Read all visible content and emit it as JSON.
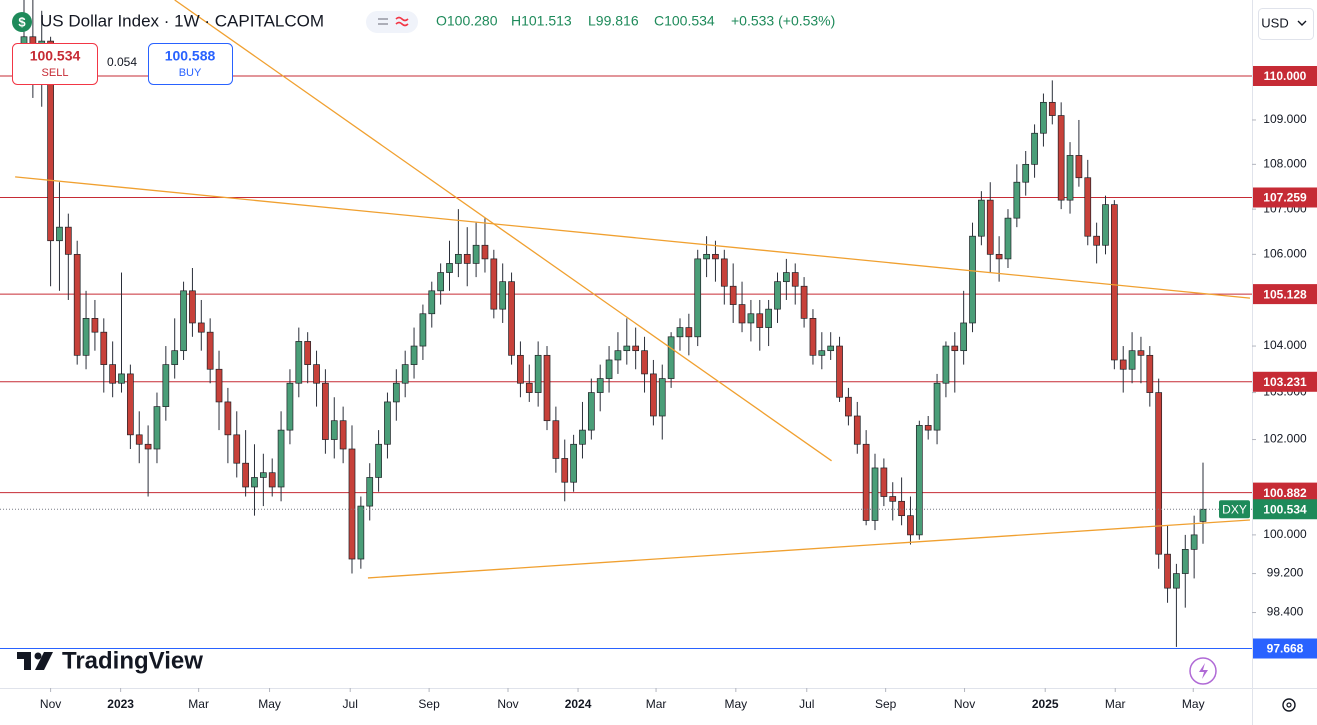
{
  "header": {
    "icon": "$",
    "symbol": "US Dollar Index · 1W · CAPITALCOM",
    "quote": [
      "O100.280",
      "H101.513",
      "L99.816",
      "C100.534",
      "+0.533 (+0.53%)"
    ],
    "quote_color": "#1e8a5a"
  },
  "trade": {
    "sell_price": "100.534",
    "sell": "SELL",
    "spread": "0.054",
    "buy_price": "100.588",
    "buy": "BUY"
  },
  "currency": "USD",
  "brand": "TradingView",
  "chart_data": {
    "type": "candlestick",
    "log_scale": true,
    "grid": false,
    "up_color": "#4a9e78",
    "down_color": "#c7413a",
    "wick_color": "#2a2e39",
    "ylim": [
      96.87,
      111.75
    ],
    "yticks": [
      {
        "value": 109,
        "label": "109.000"
      },
      {
        "value": 108,
        "label": "108.000"
      },
      {
        "value": 107,
        "label": "107.000"
      },
      {
        "value": 106,
        "label": "106.000"
      },
      {
        "value": 104,
        "label": "104.000"
      },
      {
        "value": 103,
        "label": "103.000"
      },
      {
        "value": 102,
        "label": "102.000"
      },
      {
        "value": 100,
        "label": "100.000"
      },
      {
        "value": 99.2,
        "label": "99.200"
      },
      {
        "value": 98.4,
        "label": "98.400"
      }
    ],
    "xticks": [
      {
        "value": 3,
        "label": "Nov"
      },
      {
        "value": 10.9,
        "label": "2023"
      },
      {
        "value": 19.7,
        "label": "Mar"
      },
      {
        "value": 27.7,
        "label": "May"
      },
      {
        "value": 36.8,
        "label": "Jul"
      },
      {
        "value": 45.7,
        "label": "Sep"
      },
      {
        "value": 54.6,
        "label": "Nov"
      },
      {
        "value": 62.5,
        "label": "2024"
      },
      {
        "value": 71.3,
        "label": "Mar"
      },
      {
        "value": 80.3,
        "label": "May"
      },
      {
        "value": 88.3,
        "label": "Jul"
      },
      {
        "value": 97.2,
        "label": "Sep"
      },
      {
        "value": 106.1,
        "label": "Nov"
      },
      {
        "value": 115.2,
        "label": "2025"
      },
      {
        "value": 123.1,
        "label": "Mar"
      },
      {
        "value": 131.9,
        "label": "May"
      }
    ],
    "open": [
      110.4,
      110.9,
      110.7,
      110.8,
      106.3,
      106.6,
      106.0,
      103.8,
      104.6,
      104.3,
      103.6,
      103.2,
      103.4,
      102.1,
      101.9,
      101.8,
      102.7,
      103.6,
      103.9,
      105.2,
      104.5,
      104.3,
      103.5,
      102.8,
      102.1,
      101.5,
      101.0,
      101.2,
      101.3,
      101.0,
      102.2,
      103.2,
      104.1,
      103.6,
      103.2,
      102.0,
      102.4,
      101.8,
      99.5,
      100.6,
      101.2,
      101.9,
      102.8,
      103.2,
      103.6,
      104.0,
      104.7,
      105.2,
      105.6,
      105.8,
      106.0,
      105.8,
      106.2,
      105.9,
      104.8,
      105.4,
      103.8,
      103.2,
      103.0,
      103.8,
      102.4,
      101.6,
      101.1,
      101.9,
      102.2,
      103.0,
      103.3,
      103.7,
      103.9,
      104.0,
      103.9,
      103.4,
      102.5,
      103.3,
      104.2,
      104.4,
      104.2,
      105.9,
      106.0,
      105.9,
      105.3,
      104.9,
      104.5,
      104.7,
      104.4,
      104.8,
      105.4,
      105.6,
      105.3,
      104.6,
      103.8,
      103.9,
      104.0,
      102.9,
      102.5,
      101.9,
      100.3,
      101.4,
      100.8,
      100.7,
      100.4,
      100.0,
      102.3,
      102.2,
      103.2,
      104.0,
      103.9,
      104.5,
      106.4,
      107.2,
      106.0,
      105.9,
      106.8,
      107.6,
      108.0,
      108.7,
      109.4,
      109.1,
      107.2,
      108.2,
      107.7,
      106.4,
      106.2,
      107.1,
      103.7,
      103.5,
      103.9,
      103.8,
      103.0,
      99.6,
      98.9,
      99.2,
      99.7,
      100.28
    ],
    "high": [
      111.9,
      112.3,
      111.5,
      110.9,
      107.6,
      106.9,
      106.3,
      105.2,
      105.0,
      104.6,
      104.1,
      105.6,
      103.6,
      102.6,
      102.3,
      103.0,
      104.0,
      104.6,
      105.4,
      105.7,
      105.0,
      104.6,
      103.9,
      103.1,
      102.6,
      102.2,
      101.9,
      101.7,
      101.6,
      102.6,
      103.5,
      104.4,
      104.3,
      103.9,
      103.5,
      102.9,
      102.7,
      102.3,
      100.8,
      101.5,
      102.2,
      103.0,
      103.5,
      103.9,
      104.4,
      104.9,
      105.4,
      105.8,
      106.3,
      107.0,
      106.6,
      106.7,
      106.8,
      106.1,
      105.8,
      105.6,
      104.1,
      103.6,
      104.1,
      104.0,
      102.7,
      102.0,
      102.1,
      102.8,
      103.3,
      103.6,
      104.0,
      104.3,
      104.6,
      104.4,
      104.2,
      103.7,
      103.6,
      104.3,
      104.6,
      104.7,
      106.1,
      106.4,
      106.3,
      106.1,
      105.8,
      105.4,
      105.0,
      105.0,
      105.0,
      105.6,
      105.9,
      105.8,
      105.5,
      104.8,
      104.3,
      104.3,
      104.2,
      103.1,
      102.8,
      102.2,
      101.7,
      101.6,
      101.1,
      101.2,
      100.8,
      102.4,
      102.5,
      103.4,
      104.1,
      104.3,
      105.2,
      106.7,
      107.4,
      107.6,
      106.4,
      107.0,
      108.0,
      108.3,
      108.9,
      109.6,
      109.9,
      109.4,
      108.5,
      109.0,
      108.1,
      106.7,
      107.3,
      107.2,
      104.0,
      104.3,
      104.2,
      104.0,
      103.3,
      100.2,
      99.4,
      100.0,
      100.4,
      101.513
    ],
    "low": [
      110.0,
      109.5,
      109.3,
      105.3,
      105.2,
      105.0,
      103.6,
      103.5,
      103.9,
      103.0,
      102.9,
      103.0,
      101.8,
      101.5,
      100.8,
      101.5,
      102.4,
      103.3,
      103.7,
      104.2,
      103.9,
      103.2,
      102.2,
      101.5,
      101.2,
      100.8,
      100.4,
      100.6,
      100.8,
      100.7,
      101.9,
      102.9,
      103.2,
      102.7,
      101.7,
      101.6,
      101.5,
      99.2,
      99.3,
      100.3,
      100.9,
      101.6,
      102.4,
      102.9,
      103.3,
      103.7,
      104.4,
      104.9,
      105.2,
      105.5,
      105.3,
      105.5,
      105.6,
      104.6,
      104.5,
      103.6,
      102.9,
      102.8,
      102.7,
      102.2,
      101.3,
      100.7,
      100.9,
      101.6,
      102.0,
      102.6,
      103.0,
      103.4,
      103.6,
      103.5,
      103.0,
      102.3,
      102.0,
      103.1,
      103.9,
      103.8,
      104.0,
      105.5,
      105.4,
      104.9,
      104.5,
      104.3,
      104.1,
      103.9,
      104.0,
      104.5,
      105.0,
      104.9,
      104.4,
      103.6,
      103.5,
      103.7,
      102.8,
      102.3,
      101.7,
      100.2,
      100.1,
      100.6,
      100.3,
      100.2,
      99.8,
      99.9,
      102.0,
      101.9,
      102.9,
      103.0,
      103.6,
      104.3,
      106.2,
      105.6,
      105.4,
      105.7,
      106.6,
      107.3,
      107.7,
      108.4,
      108.9,
      107.0,
      106.9,
      107.5,
      106.2,
      105.8,
      106.0,
      103.5,
      103.0,
      103.2,
      103.2,
      102.7,
      99.3,
      98.6,
      97.7,
      98.5,
      99.1,
      99.816
    ],
    "close": [
      110.9,
      110.7,
      110.8,
      106.3,
      106.6,
      106.0,
      103.8,
      104.6,
      104.3,
      103.6,
      103.2,
      103.4,
      102.1,
      101.9,
      101.8,
      102.7,
      103.6,
      103.9,
      105.2,
      104.5,
      104.3,
      103.5,
      102.8,
      102.1,
      101.5,
      101.0,
      101.2,
      101.3,
      101.0,
      102.2,
      103.2,
      104.1,
      103.6,
      103.2,
      102.0,
      102.4,
      101.8,
      99.5,
      100.6,
      101.2,
      101.9,
      102.8,
      103.2,
      103.6,
      104.0,
      104.7,
      105.2,
      105.6,
      105.8,
      106.0,
      105.8,
      106.2,
      105.9,
      104.8,
      105.4,
      103.8,
      103.2,
      103.0,
      103.8,
      102.4,
      101.6,
      101.1,
      101.9,
      102.2,
      103.0,
      103.3,
      103.7,
      103.9,
      104.0,
      103.9,
      103.4,
      102.5,
      103.3,
      104.2,
      104.4,
      104.2,
      105.9,
      106.0,
      105.9,
      105.3,
      104.9,
      104.5,
      104.7,
      104.4,
      104.8,
      105.4,
      105.6,
      105.3,
      104.6,
      103.8,
      103.9,
      104.0,
      102.9,
      102.5,
      101.9,
      100.3,
      101.4,
      100.8,
      100.7,
      100.4,
      100.0,
      102.3,
      102.2,
      103.2,
      104.0,
      103.9,
      104.5,
      106.4,
      107.2,
      106.0,
      105.9,
      106.8,
      107.6,
      108.0,
      108.7,
      109.4,
      109.1,
      107.2,
      108.2,
      107.7,
      106.4,
      106.2,
      107.1,
      103.7,
      103.5,
      103.9,
      103.8,
      103.0,
      99.6,
      98.9,
      99.2,
      99.7,
      100.0,
      100.534
    ],
    "levels": [
      {
        "value": 110,
        "label": "110.000",
        "color": "#c62b35"
      },
      {
        "value": 107.259,
        "label": "107.259",
        "color": "#c62b35"
      },
      {
        "value": 105.128,
        "label": "105.128",
        "color": "#c62b35"
      },
      {
        "value": 103.231,
        "label": "103.231",
        "color": "#c62b35"
      },
      {
        "value": 100.882,
        "label": "100.882",
        "color": "#c62b35"
      },
      {
        "value": 97.668,
        "label": "97.668",
        "color": "#2962ff"
      }
    ],
    "last": {
      "value": 100.534,
      "label": "100.534",
      "symbol": "DXY",
      "color": "#1e8a5a"
    },
    "trend_color": "#f0a030",
    "trend_lines": [
      {
        "x": [
          -1,
          138.3
        ],
        "y": [
          107.72,
          105.04
        ]
      },
      {
        "x": [
          17,
          91.1
        ],
        "y": [
          111.75,
          101.55
        ]
      },
      {
        "x": [
          38.8,
          138.3
        ],
        "y": [
          99.11,
          100.31
        ]
      }
    ]
  }
}
